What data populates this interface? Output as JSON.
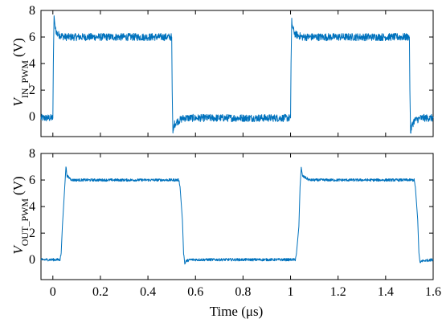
{
  "chart_data": [
    {
      "type": "line",
      "title": "",
      "ylabel": {
        "main": "V",
        "subscript": "IN_PWM",
        "unit": "(V)"
      },
      "xlabel": "",
      "xlim": [
        -0.05,
        1.6
      ],
      "ylim": [
        -1.5,
        8
      ],
      "yticks": [
        0,
        2,
        4,
        6,
        8
      ],
      "ytick_labels": [
        "0",
        "2",
        "4",
        "6",
        "8"
      ],
      "grid": false,
      "line_color": "#0072BD",
      "series": [
        {
          "x": [
            -0.05,
            0.0,
            0.002,
            0.005,
            0.01,
            0.02,
            0.05,
            0.1,
            0.2,
            0.3,
            0.4,
            0.5,
            0.502,
            0.505,
            0.51,
            0.52,
            0.55,
            0.6,
            0.7,
            0.8,
            0.9,
            1.0,
            1.002,
            1.005,
            1.01,
            1.02,
            1.05,
            1.1,
            1.2,
            1.3,
            1.4,
            1.5,
            1.502,
            1.505,
            1.51,
            1.52,
            1.55,
            1.6
          ],
          "y": [
            -0.1,
            -0.1,
            4.0,
            7.6,
            6.6,
            6.2,
            6.0,
            6.0,
            6.0,
            6.0,
            6.0,
            6.0,
            2.0,
            -1.4,
            -0.6,
            -0.4,
            -0.1,
            -0.1,
            -0.1,
            -0.1,
            -0.1,
            -0.1,
            4.0,
            7.2,
            6.6,
            6.2,
            6.0,
            6.0,
            6.0,
            6.0,
            6.0,
            6.0,
            2.0,
            -1.2,
            -0.7,
            -0.3,
            -0.1,
            -0.1
          ]
        }
      ]
    },
    {
      "type": "line",
      "title": "",
      "ylabel": {
        "main": "V",
        "subscript": "OUT_PWM",
        "unit": "(V)"
      },
      "xlabel": "Time (μs)",
      "xlim": [
        -0.05,
        1.6
      ],
      "ylim": [
        -1.5,
        8
      ],
      "xticks": [
        0,
        0.2,
        0.4,
        0.6,
        0.8,
        1,
        1.2,
        1.4,
        1.6
      ],
      "xtick_labels": [
        "0",
        "0.2",
        "0.4",
        "0.6",
        "0.8",
        "1",
        "1.2",
        "1.4",
        "1.6"
      ],
      "yticks": [
        0,
        2,
        4,
        6,
        8
      ],
      "ytick_labels": [
        "0",
        "2",
        "4",
        "6",
        "8"
      ],
      "grid": false,
      "line_color": "#0072BD",
      "series": [
        {
          "x": [
            -0.05,
            0.03,
            0.035,
            0.04,
            0.05,
            0.055,
            0.06,
            0.08,
            0.1,
            0.2,
            0.3,
            0.4,
            0.5,
            0.53,
            0.535,
            0.545,
            0.55,
            0.555,
            0.56,
            0.58,
            0.6,
            0.7,
            0.8,
            0.9,
            1.0,
            1.02,
            1.025,
            1.035,
            1.04,
            1.045,
            1.05,
            1.08,
            1.1,
            1.2,
            1.3,
            1.4,
            1.5,
            1.52,
            1.525,
            1.535,
            1.54,
            1.545,
            1.55,
            1.6
          ],
          "y": [
            0.0,
            0.0,
            0.5,
            2.5,
            5.5,
            7.0,
            6.3,
            6.0,
            6.0,
            6.0,
            6.0,
            6.0,
            6.0,
            6.0,
            5.5,
            3.0,
            0.5,
            -0.3,
            -0.1,
            0.0,
            0.0,
            0.0,
            0.0,
            0.0,
            0.0,
            0.0,
            0.5,
            2.5,
            5.5,
            6.9,
            6.3,
            6.0,
            6.0,
            6.0,
            6.0,
            6.0,
            6.0,
            6.0,
            5.5,
            3.0,
            0.5,
            -0.3,
            -0.1,
            0.0
          ]
        }
      ]
    }
  ]
}
